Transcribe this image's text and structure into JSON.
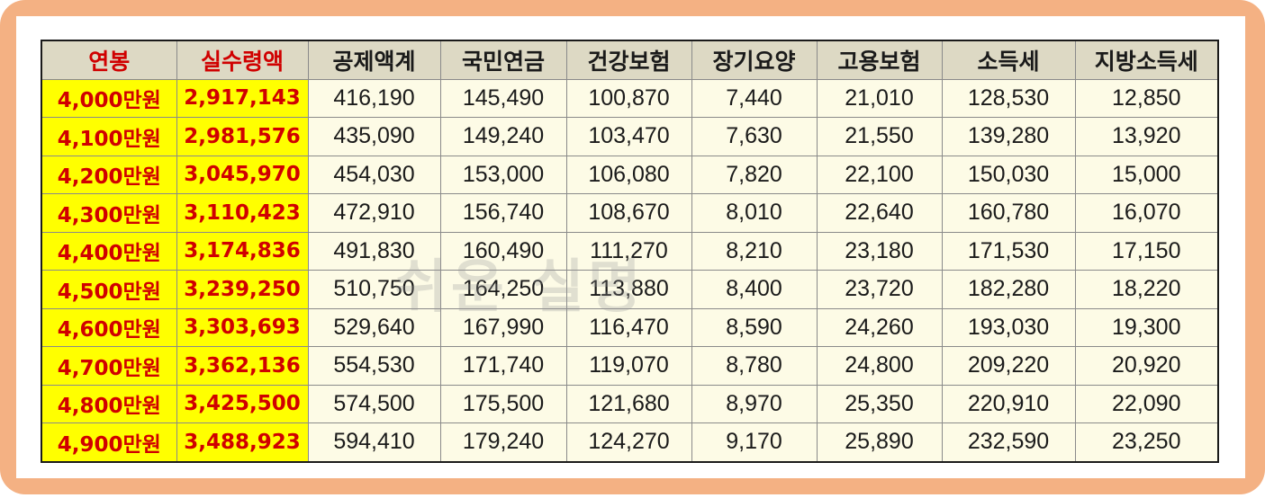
{
  "table": {
    "headers": [
      "연봉",
      "실수령액",
      "공제액계",
      "국민연금",
      "건강보험",
      "장기요양",
      "고용보험",
      "소득세",
      "지방소득세"
    ],
    "rows": [
      [
        "4,000만원",
        "2,917,143",
        "416,190",
        "145,490",
        "100,870",
        "7,440",
        "21,010",
        "128,530",
        "12,850"
      ],
      [
        "4,100만원",
        "2,981,576",
        "435,090",
        "149,240",
        "103,470",
        "7,630",
        "21,550",
        "139,280",
        "13,920"
      ],
      [
        "4,200만원",
        "3,045,970",
        "454,030",
        "153,000",
        "106,080",
        "7,820",
        "22,100",
        "150,030",
        "15,000"
      ],
      [
        "4,300만원",
        "3,110,423",
        "472,910",
        "156,740",
        "108,670",
        "8,010",
        "22,640",
        "160,780",
        "16,070"
      ],
      [
        "4,400만원",
        "3,174,836",
        "491,830",
        "160,490",
        "111,270",
        "8,210",
        "23,180",
        "171,530",
        "17,150"
      ],
      [
        "4,500만원",
        "3,239,250",
        "510,750",
        "164,250",
        "113,880",
        "8,400",
        "23,720",
        "182,280",
        "18,220"
      ],
      [
        "4,600만원",
        "3,303,693",
        "529,640",
        "167,990",
        "116,470",
        "8,590",
        "24,260",
        "193,030",
        "19,300"
      ],
      [
        "4,700만원",
        "3,362,136",
        "554,530",
        "171,740",
        "119,070",
        "8,780",
        "24,800",
        "209,220",
        "20,920"
      ],
      [
        "4,800만원",
        "3,425,500",
        "574,500",
        "175,500",
        "121,680",
        "8,970",
        "25,350",
        "220,910",
        "22,090"
      ],
      [
        "4,900만원",
        "3,488,923",
        "594,410",
        "179,240",
        "124,270",
        "9,170",
        "25,890",
        "232,590",
        "23,250"
      ]
    ]
  },
  "watermark": "쉬운 실명",
  "colors": {
    "frame": "#f4b183",
    "header_bg": "#ddd9c4",
    "highlight_bg": "#ffff00",
    "highlight_text": "#d00000",
    "cell_bg": "#fdfbe6"
  }
}
